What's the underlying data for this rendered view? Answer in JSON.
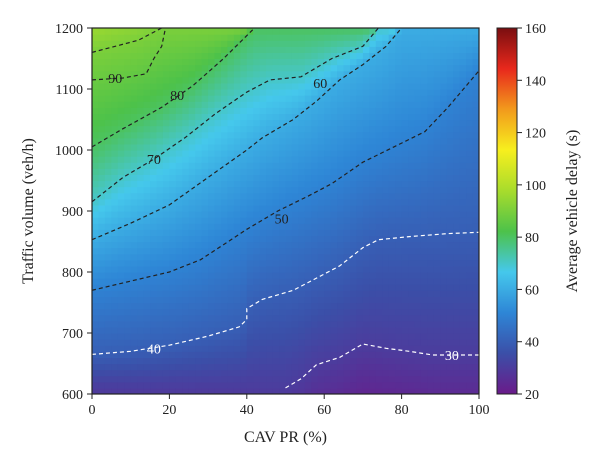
{
  "chart_data": {
    "type": "heatmap",
    "xlabel": "CAV PR (%)",
    "ylabel": "Traffic volume (veh/h)",
    "colorbar_label": "Average vehicle delay (s)",
    "xlim": [
      0,
      100
    ],
    "ylim": [
      600,
      1200
    ],
    "clim": [
      20,
      160
    ],
    "x_ticks": [
      0,
      20,
      40,
      60,
      80,
      100
    ],
    "y_ticks": [
      600,
      700,
      800,
      900,
      1000,
      1100,
      1200
    ],
    "colorbar_ticks": [
      20,
      40,
      60,
      80,
      100,
      120,
      140,
      160
    ],
    "colormap": [
      "#6a1b8a",
      "#3b4fa8",
      "#2e86d6",
      "#45c8ec",
      "#4dc24a",
      "#a8dc2c",
      "#f7ef1e",
      "#f29a1c",
      "#e8281c",
      "#7a0e10"
    ],
    "grid": false,
    "contours": [
      {
        "level": 90,
        "label": "90",
        "color": "#222222",
        "points": [
          [
            0,
            1160
          ],
          [
            6,
            1170
          ],
          [
            12,
            1180
          ],
          [
            18,
            1200
          ]
        ],
        "label_at": [
          6,
          1118
        ]
      },
      {
        "level": 90,
        "label": "90",
        "color": "#222222",
        "points": [
          [
            0,
            1115
          ],
          [
            8,
            1118
          ],
          [
            14,
            1125
          ],
          [
            16,
            1150
          ],
          [
            18,
            1170
          ],
          [
            19,
            1200
          ]
        ]
      },
      {
        "level": 80,
        "label": "80",
        "color": "#222222",
        "points": [
          [
            0,
            1005
          ],
          [
            8,
            1035
          ],
          [
            18,
            1070
          ],
          [
            26,
            1105
          ],
          [
            34,
            1150
          ],
          [
            42,
            1200
          ]
        ],
        "label_at": [
          22,
          1090
        ]
      },
      {
        "level": 70,
        "label": "70",
        "color": "#222222",
        "points": [
          [
            0,
            915
          ],
          [
            8,
            955
          ],
          [
            16,
            985
          ],
          [
            24,
            1020
          ],
          [
            32,
            1060
          ],
          [
            40,
            1095
          ],
          [
            46,
            1115
          ],
          [
            54,
            1120
          ],
          [
            62,
            1150
          ],
          [
            70,
            1170
          ],
          [
            74,
            1200
          ]
        ],
        "label_at": [
          16,
          985
        ]
      },
      {
        "level": 60,
        "label": "60",
        "color": "#222222",
        "points": [
          [
            0,
            853
          ],
          [
            10,
            880
          ],
          [
            20,
            910
          ],
          [
            30,
            955
          ],
          [
            40,
            1000
          ],
          [
            44,
            1020
          ],
          [
            52,
            1050
          ],
          [
            58,
            1080
          ],
          [
            64,
            1115
          ],
          [
            70,
            1140
          ],
          [
            76,
            1170
          ],
          [
            80,
            1200
          ]
        ],
        "label_at": [
          59,
          1110
        ]
      },
      {
        "level": 50,
        "label": "50",
        "color": "#222222",
        "points": [
          [
            0,
            770
          ],
          [
            10,
            785
          ],
          [
            20,
            800
          ],
          [
            28,
            820
          ],
          [
            34,
            845
          ],
          [
            40,
            870
          ],
          [
            48,
            900
          ],
          [
            56,
            925
          ],
          [
            62,
            945
          ],
          [
            70,
            980
          ],
          [
            78,
            1005
          ],
          [
            86,
            1030
          ],
          [
            92,
            1070
          ],
          [
            96,
            1100
          ],
          [
            100,
            1130
          ]
        ],
        "label_at": [
          49,
          888
        ]
      },
      {
        "level": 40,
        "label": "40",
        "color": "#ffffff",
        "points": [
          [
            0,
            665
          ],
          [
            10,
            670
          ],
          [
            20,
            680
          ],
          [
            30,
            695
          ],
          [
            38,
            710
          ],
          [
            40,
            722
          ],
          [
            40,
            740
          ],
          [
            44,
            755
          ],
          [
            52,
            770
          ],
          [
            58,
            790
          ],
          [
            64,
            810
          ],
          [
            70,
            840
          ],
          [
            74,
            853
          ],
          [
            82,
            858
          ],
          [
            92,
            863
          ],
          [
            100,
            865
          ]
        ],
        "label_at": [
          16,
          675
        ]
      },
      {
        "level": 30,
        "label": "30",
        "color": "#ffffff",
        "points": [
          [
            50,
            610
          ],
          [
            54,
            625
          ],
          [
            58,
            648
          ],
          [
            64,
            660
          ],
          [
            70,
            682
          ],
          [
            76,
            675
          ],
          [
            82,
            670
          ],
          [
            88,
            664
          ],
          [
            94,
            664
          ],
          [
            100,
            664
          ]
        ],
        "label_at": [
          93,
          664
        ]
      }
    ]
  }
}
